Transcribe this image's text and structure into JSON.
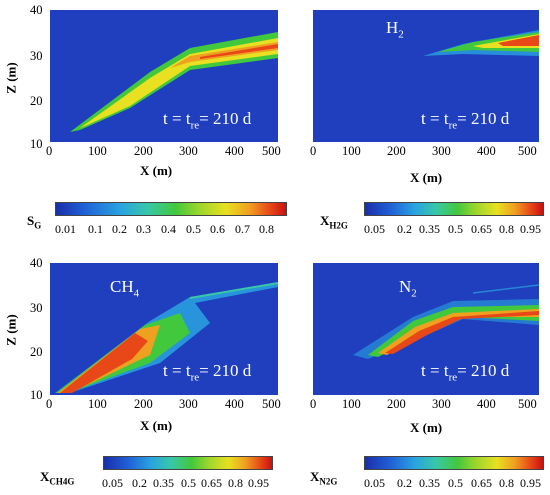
{
  "chart_data": [
    {
      "type": "heatmap",
      "panel": "top-left",
      "variable": "S_G",
      "annotation": {
        "t": "t",
        "tre": "t",
        "tre_sub": "re",
        "value": "= 210 d"
      },
      "xlabel": "X (m)",
      "ylabel": "Z (m)",
      "xlim": [
        0,
        500
      ],
      "ylim": [
        10,
        40
      ],
      "xticks": [
        "0",
        "100",
        "200",
        "300",
        "400",
        "500"
      ],
      "yticks": [
        "10",
        "20",
        "30",
        "40"
      ],
      "colorbar": {
        "label": "S",
        "label_sub": "G",
        "ticks": [
          "0.01",
          "0.1",
          "0.2",
          "0.3",
          "0.4",
          "0.5",
          "0.6",
          "0.7",
          "0.8"
        ]
      }
    },
    {
      "type": "heatmap",
      "panel": "top-right",
      "variable": "X_H2G",
      "title": "H",
      "title_sub": "2",
      "annotation": {
        "t": "t",
        "tre": "t",
        "tre_sub": "re",
        "value": "= 210 d"
      },
      "xlabel": "X (m)",
      "xlim": [
        0,
        500
      ],
      "ylim": [
        10,
        40
      ],
      "xticks": [
        "0",
        "100",
        "200",
        "300",
        "400",
        "500"
      ],
      "colorbar": {
        "label": "X",
        "label_sub": "H2G",
        "ticks": [
          "0.05",
          "0.2",
          "0.35",
          "0.5",
          "0.65",
          "0.8",
          "0.95"
        ]
      }
    },
    {
      "type": "heatmap",
      "panel": "bottom-left",
      "variable": "X_CH4G",
      "title": "CH",
      "title_sub": "4",
      "annotation": {
        "t": "t",
        "tre": "t",
        "tre_sub": "re",
        "value": "= 210 d"
      },
      "xlabel": "X (m)",
      "ylabel": "Z (m)",
      "xlim": [
        0,
        500
      ],
      "ylim": [
        10,
        40
      ],
      "xticks": [
        "0",
        "100",
        "200",
        "300",
        "400",
        "500"
      ],
      "yticks": [
        "10",
        "20",
        "30",
        "40"
      ],
      "colorbar": {
        "label": "X",
        "label_sub": "CH4G",
        "ticks": [
          "0.05",
          "0.2",
          "0.35",
          "0.5",
          "0.65",
          "0.8",
          "0.95"
        ]
      }
    },
    {
      "type": "heatmap",
      "panel": "bottom-right",
      "variable": "X_N2G",
      "title": "N",
      "title_sub": "2",
      "annotation": {
        "t": "t",
        "tre": "t",
        "tre_sub": "re",
        "value": "= 210 d"
      },
      "xlabel": "X (m)",
      "xlim": [
        0,
        500
      ],
      "ylim": [
        10,
        40
      ],
      "xticks": [
        "0",
        "100",
        "200",
        "300",
        "400",
        "500"
      ],
      "colorbar": {
        "label": "X",
        "label_sub": "N2G",
        "ticks": [
          "0.05",
          "0.2",
          "0.35",
          "0.5",
          "0.65",
          "0.8",
          "0.95"
        ]
      }
    }
  ],
  "colors": {
    "background_field": "#1f3fbf",
    "colormap": [
      "#1a2fa8",
      "#1f5fd6",
      "#29a3e0",
      "#38c8a8",
      "#42c83c",
      "#9ad62c",
      "#e8e020",
      "#f0a020",
      "#e84818",
      "#c81010"
    ]
  }
}
